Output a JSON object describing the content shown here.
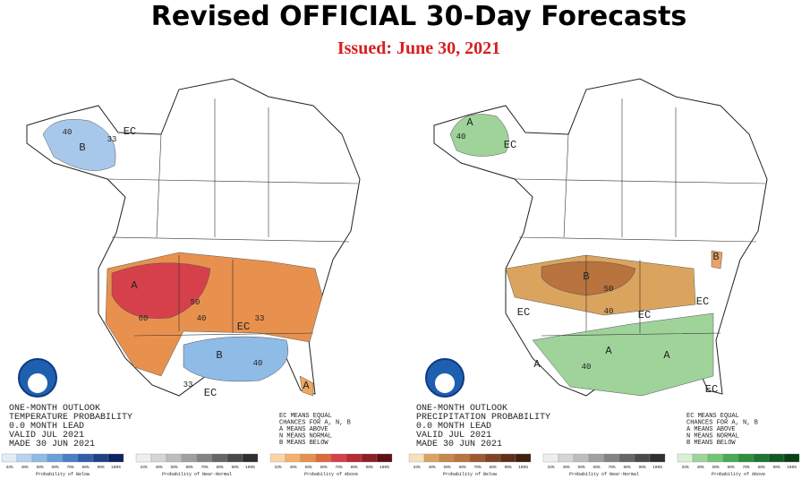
{
  "title": "Revised OFFICIAL 30-Day Forecasts",
  "subtitle": "Issued: June 30, 2021",
  "legend_ticks": [
    "33%",
    "40%",
    "50%",
    "60%",
    "70%",
    "80%",
    "90%",
    "100%"
  ],
  "maps": [
    {
      "outlook": [
        "ONE-MONTH OUTLOOK",
        "TEMPERATURE PROBABILITY",
        "0.0 MONTH LEAD",
        "VALID JUL 2021",
        "MADE 30 JUN 2021"
      ],
      "key": [
        "EC MEANS EQUAL",
        "CHANCES FOR A, N, B",
        "A MEANS ABOVE",
        "N MEANS NORMAL",
        "B MEANS BELOW"
      ],
      "region_labels": [
        "EC",
        "B",
        "40",
        "33",
        "A",
        "50",
        "60",
        "40",
        "33",
        "EC",
        "B",
        "40",
        "33",
        "EC",
        "A"
      ],
      "legends": [
        {
          "caption": "Probability of Below"
        },
        {
          "caption": "Probability of Near-Normal"
        },
        {
          "caption": "Probability of Above"
        }
      ]
    },
    {
      "outlook": [
        "ONE-MONTH OUTLOOK",
        "PRECIPITATION PROBABILITY",
        "0.0 MONTH LEAD",
        "VALID JUL 2021",
        "MADE 30 JUN 2021"
      ],
      "key": [
        "EC MEANS EQUAL",
        "CHANCES FOR A, N, B",
        "A MEANS ABOVE",
        "N MEANS NORMAL",
        "B MEANS BELOW"
      ],
      "region_labels": [
        "A",
        "EC",
        "40",
        "B",
        "50",
        "EC",
        "EC",
        "40",
        "A",
        "A",
        "A",
        "40",
        "EC",
        "B",
        "EC"
      ],
      "legends": [
        {
          "caption": "Probability of Below"
        },
        {
          "caption": "Probability of Near-Normal"
        },
        {
          "caption": "Probability of Above"
        }
      ]
    }
  ]
}
